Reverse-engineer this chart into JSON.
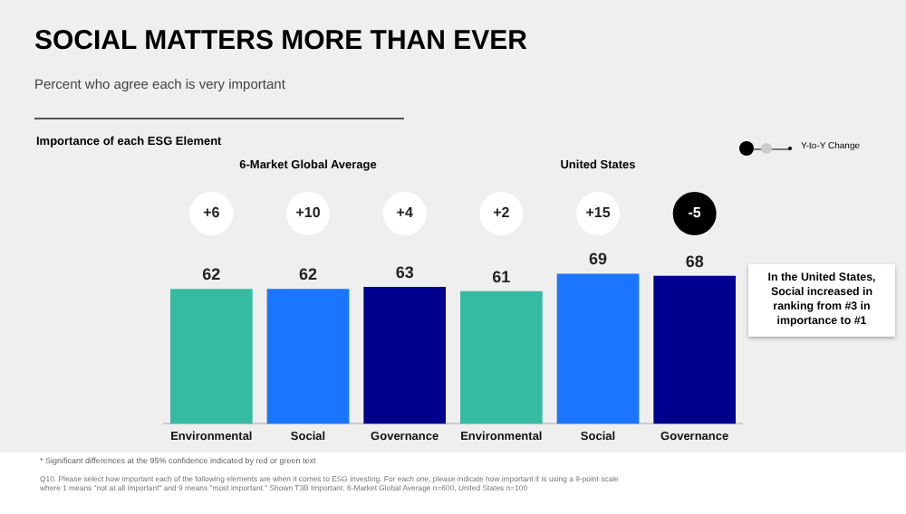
{
  "chart_data": [
    {
      "type": "bar",
      "title": "6-Market Global Average",
      "categories": [
        "Environmental",
        "Social",
        "Governance"
      ],
      "values": [
        62,
        62,
        63
      ],
      "colors": [
        "#36bba3",
        "#1a75ff",
        "#00008f"
      ],
      "data_labels": true,
      "legend": false,
      "grid": false,
      "annotations": [
        "+6",
        "+10",
        "+4",
        "SOCIAL MATTERS MORE THAN EVER",
        "Percent who agree each is very important",
        "Importance of each ESG Element",
        "Y-to-Y Change",
        "* Significant differences at the 95% confidence indicated by red or green text",
        "Q10. Please select how important each of the following elements are when it comes to ESG investing. For each one, please indicate how important it is using a 9-point scale where 1 means \"not at all important\" and 9 means \"most important.\" Shown T3B Important. 6-Market Global Average n=600, United States n=100"
      ]
    },
    {
      "type": "bar",
      "title": "United States",
      "categories": [
        "Environmental",
        "Social",
        "Governance"
      ],
      "values": [
        61,
        69,
        68
      ],
      "colors": [
        "#36bba3",
        "#1a75ff",
        "#00008f"
      ],
      "data_labels": true,
      "legend": false,
      "grid": false,
      "annotations": [
        "+2",
        "+15",
        "-5",
        "In the United States, Social increased in ranking from #3 in importance to #1"
      ]
    }
  ]
}
